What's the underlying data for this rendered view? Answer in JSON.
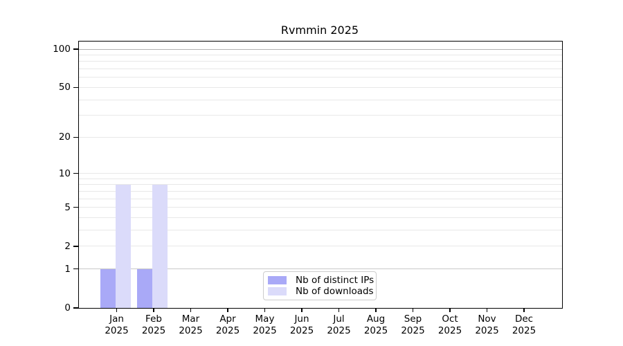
{
  "chart_data": {
    "type": "bar",
    "title": "Rvmmin 2025",
    "x_month_labels": [
      "Jan",
      "Feb",
      "Mar",
      "Apr",
      "May",
      "Jun",
      "Jul",
      "Aug",
      "Sep",
      "Oct",
      "Nov",
      "Dec"
    ],
    "x_year_label": "2025",
    "series": [
      {
        "name": "Nb of distinct IPs",
        "color": "#a9a9f7",
        "values": [
          1,
          1,
          0,
          0,
          0,
          0,
          0,
          0,
          0,
          0,
          0,
          0
        ]
      },
      {
        "name": "Nb of downloads",
        "color": "#dbdbfa",
        "values": [
          8,
          8,
          0,
          0,
          0,
          0,
          0,
          0,
          0,
          0,
          0,
          0
        ]
      }
    ],
    "yscale": "log1p",
    "ylim": [
      0,
      100
    ],
    "ytick_labels": [
      "0",
      "1",
      "2",
      "5",
      "10",
      "20",
      "50",
      "100"
    ],
    "minor_gridline_values": [
      2,
      3,
      4,
      5,
      6,
      7,
      8,
      9,
      10,
      20,
      30,
      40,
      50,
      60,
      70,
      80,
      90
    ],
    "emphasized_gridlines": {
      "1": "#c8c8c8",
      "100": "#b2b2b2"
    },
    "minor_gridline_color": "#e8e8e8",
    "legend_position": "lower center",
    "grid": "on"
  }
}
